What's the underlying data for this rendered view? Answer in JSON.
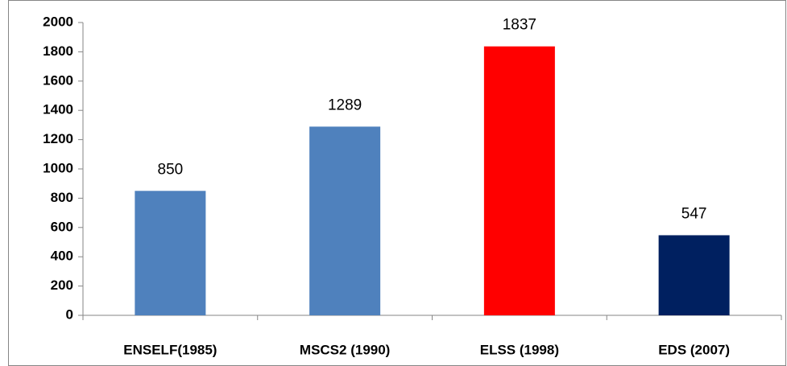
{
  "chart_data": {
    "type": "bar",
    "categories": [
      "ENSELF(1985)",
      "MSCS2 (1990)",
      "ELSS (1998)",
      "EDS (2007)"
    ],
    "values": [
      850,
      1289,
      1837,
      547
    ],
    "colors": [
      "#4f81bd",
      "#4f81bd",
      "#ff0000",
      "#002060"
    ],
    "ylim": [
      0,
      2000
    ],
    "yticks": [
      0,
      200,
      400,
      600,
      800,
      1000,
      1200,
      1400,
      1600,
      1800,
      2000
    ],
    "grid": false
  }
}
